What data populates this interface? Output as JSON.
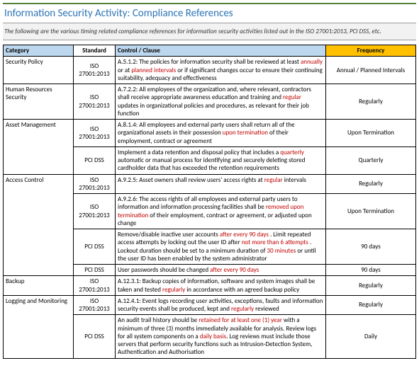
{
  "title": "Information Security Activity: Compliance References",
  "subtitle": "The following are the various timing related compliance references for information security activities listed out in the ISO 27001:2013, PCI DSS, etc.",
  "headers": {
    "category": "Category",
    "standard": "Standard",
    "control": "Control / Clause",
    "frequency": "Frequency"
  },
  "rows": [
    {
      "category": "Security Policy",
      "standard": "ISO 27001:2013",
      "control_parts": [
        "A.5.1.2: The policies for information security shall be reviewed at least ",
        {
          "hl": "annually"
        },
        " or at ",
        {
          "hl": "planned intervals"
        },
        " or if significant changes occur to ensure their continuing suitability, adequacy and effectiveness"
      ],
      "frequency": "Annual / Planned Intervals",
      "cat_rowspan": 1
    },
    {
      "category": "Human Resources Security",
      "standard": "ISO 27001:2013",
      "control_parts": [
        "A.7.2.2: All employees of the organization and, where relevant, contractors shall receive appropriate awareness education and training and ",
        {
          "hl": "regular"
        },
        " updates in organizational policies and procedures, as relevant for their job function"
      ],
      "frequency": "Regularly",
      "cat_rowspan": 1
    },
    {
      "category": "Asset Management",
      "standard": "ISO 27001:2013",
      "control_parts": [
        "A.8.1.4: All employees and external party users shall return all of the organizational assets in their possession ",
        {
          "hl": "upon termination"
        },
        " of their employment, contract or agreement"
      ],
      "frequency": "Upon Termination",
      "cat_rowspan": 2
    },
    {
      "standard": "PCI DSS",
      "control_parts": [
        "Implement a data retention and disposal policy that includes a ",
        {
          "hl": "quarterly"
        },
        " automatic or manual process for identifying and securely deleting stored cardholder data that has exceeded the retention requirements"
      ],
      "frequency": "Quarterly"
    },
    {
      "category": "Access Control",
      "standard": "ISO 27001:2013",
      "control_parts": [
        "A.9.2.5: Asset owners shall review users' access rights at ",
        {
          "hl": "regular"
        },
        " intervals"
      ],
      "frequency": "Regularly",
      "cat_rowspan": 4
    },
    {
      "standard": "ISO 27001:2013",
      "control_parts": [
        "A.9.2.6: The access rights of all employees and external party users to information and information processing facilities shall be ",
        {
          "hl": "removed upon termination"
        },
        " of their employment, contract or agreement, or adjusted upon change"
      ],
      "frequency": "Upon Termination"
    },
    {
      "standard": "PCI DSS",
      "control_parts": [
        "Remove/disable inactive user accounts ",
        {
          "hl": " after every  90 days "
        },
        ". Limit repeated access attempts  by locking out the user ID after ",
        {
          "hl": " not more than 6 attempts "
        },
        ". Lockout duration should be set to a minimum duration of  ",
        {
          "hl": " 30 minutes "
        },
        " or until the user ID has been enabled by the system administrator"
      ],
      "frequency": "90 days"
    },
    {
      "standard": "PCI DSS",
      "control_parts": [
        "User passwords should be changed ",
        {
          "hl": "after every 90 days"
        }
      ],
      "frequency": "90 days"
    },
    {
      "category": "Backup",
      "standard": "ISO 27001:2013",
      "control_parts": [
        "A.12.3.1: Backup copies of information, software and system images shall be taken and tested ",
        {
          "hl": "regularly"
        },
        " in accordance with an agreed backup policy"
      ],
      "frequency": "Regularly",
      "cat_rowspan": 1
    },
    {
      "category": "Logging and Monitoring",
      "standard": "ISO 27001:2013",
      "control_parts": [
        "A.12.4.1: Event logs recording user activities, exceptions, faults and information security events shall be produced, kept and ",
        {
          "hl": "regularly"
        },
        " reviewed"
      ],
      "frequency": "Regularly",
      "cat_rowspan": 2
    },
    {
      "standard": "PCI DSS",
      "control_parts": [
        "An audit trail history should be ",
        {
          "hl": "retained for at least one (1) year"
        },
        " with a minimum of three (3) months immediately available for analysis. Review logs for all system components on a ",
        {
          "hl": "daily basis"
        },
        ". Log reviews must include those servers that perform security functions such as Intrusion-Detection System, Authentication and Authorisation"
      ],
      "frequency": "Daily"
    }
  ]
}
